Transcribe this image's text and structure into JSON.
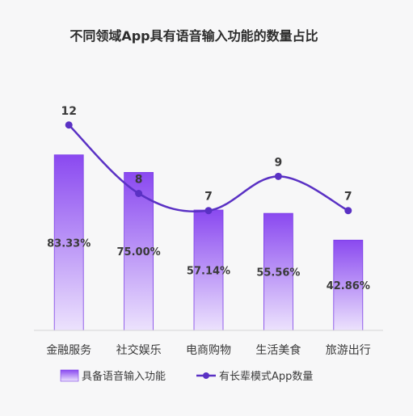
{
  "chart_data": {
    "type": "bar",
    "title": "不同领域App具有语音输入功能的数量占比",
    "categories": [
      "金融服务",
      "社交娱乐",
      "电商购物",
      "生活美食",
      "旅游出行"
    ],
    "series": [
      {
        "name": "具备语音输入功能",
        "type": "bar",
        "values": [
          83.33,
          75.0,
          57.14,
          55.56,
          42.86
        ],
        "labels": [
          "83.33%",
          "75.00%",
          "57.14%",
          "55.56%",
          "42.86%"
        ]
      },
      {
        "name": "有长辈模式App数量",
        "type": "line",
        "values": [
          12,
          8,
          7,
          9,
          7
        ],
        "labels": [
          "12",
          "8",
          "7",
          "9",
          "7"
        ]
      }
    ],
    "bar_ylim": [
      0,
      130
    ],
    "line_ylim": [
      0,
      16
    ],
    "legend_position": "bottom",
    "grid": false,
    "colors": {
      "bar_top": "#8a49f0",
      "bar_bottom": "#ece2fd",
      "bar_stroke": "#7c3fe6",
      "line": "#5a31c4",
      "marker": "#5a31c4",
      "title": "#2d2d2d",
      "label": "#3a3a3a"
    }
  }
}
